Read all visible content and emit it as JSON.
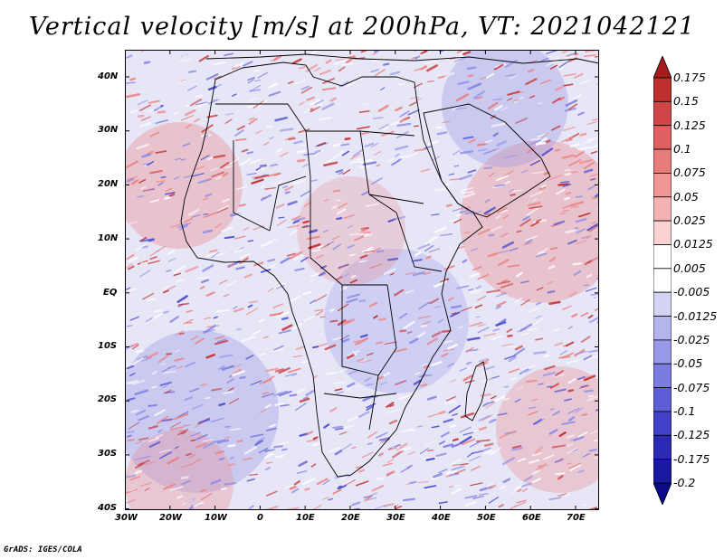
{
  "title": "Vertical velocity [m/s] at 200hPa, VT: 2021042121",
  "credit": "GrADS: IGES/COLA",
  "lat_labels": [
    "40N",
    "30N",
    "20N",
    "10N",
    "EQ",
    "10S",
    "20S",
    "30S",
    "40S"
  ],
  "lon_labels": [
    "30W",
    "20W",
    "10W",
    "0",
    "10E",
    "20E",
    "30E",
    "40E",
    "50E",
    "60E",
    "70E"
  ],
  "colorbar": {
    "labels": [
      "0.175",
      "0.15",
      "0.125",
      "0.1",
      "0.075",
      "0.05",
      "0.025",
      "0.0125",
      "0.005",
      "-0.005",
      "-0.0125",
      "-0.025",
      "-0.05",
      "-0.075",
      "-0.1",
      "-0.125",
      "-0.175",
      "-0.2"
    ],
    "colors": [
      "#a51c1c",
      "#be2f2f",
      "#d04545",
      "#df6060",
      "#e87a7a",
      "#f09696",
      "#f5b3b3",
      "#fad2d2",
      "#ffffff",
      "#ffffff",
      "#d3d3f4",
      "#b5b5ee",
      "#9898e8",
      "#7b7be0",
      "#5d5dd6",
      "#4242c8",
      "#2a2ab5",
      "#1a1aa0",
      "#0a0a8a"
    ],
    "top_arrow_color": "#a51c1c",
    "bottom_arrow_color": "#0a0a8a"
  },
  "field_colors": {
    "background": "#e6e6f7",
    "blue_dark": "#4a4ad2",
    "blue_mid": "#8a8ae6",
    "red_mid": "#ec8080",
    "red_dark": "#c43030",
    "white": "#ffffff"
  }
}
